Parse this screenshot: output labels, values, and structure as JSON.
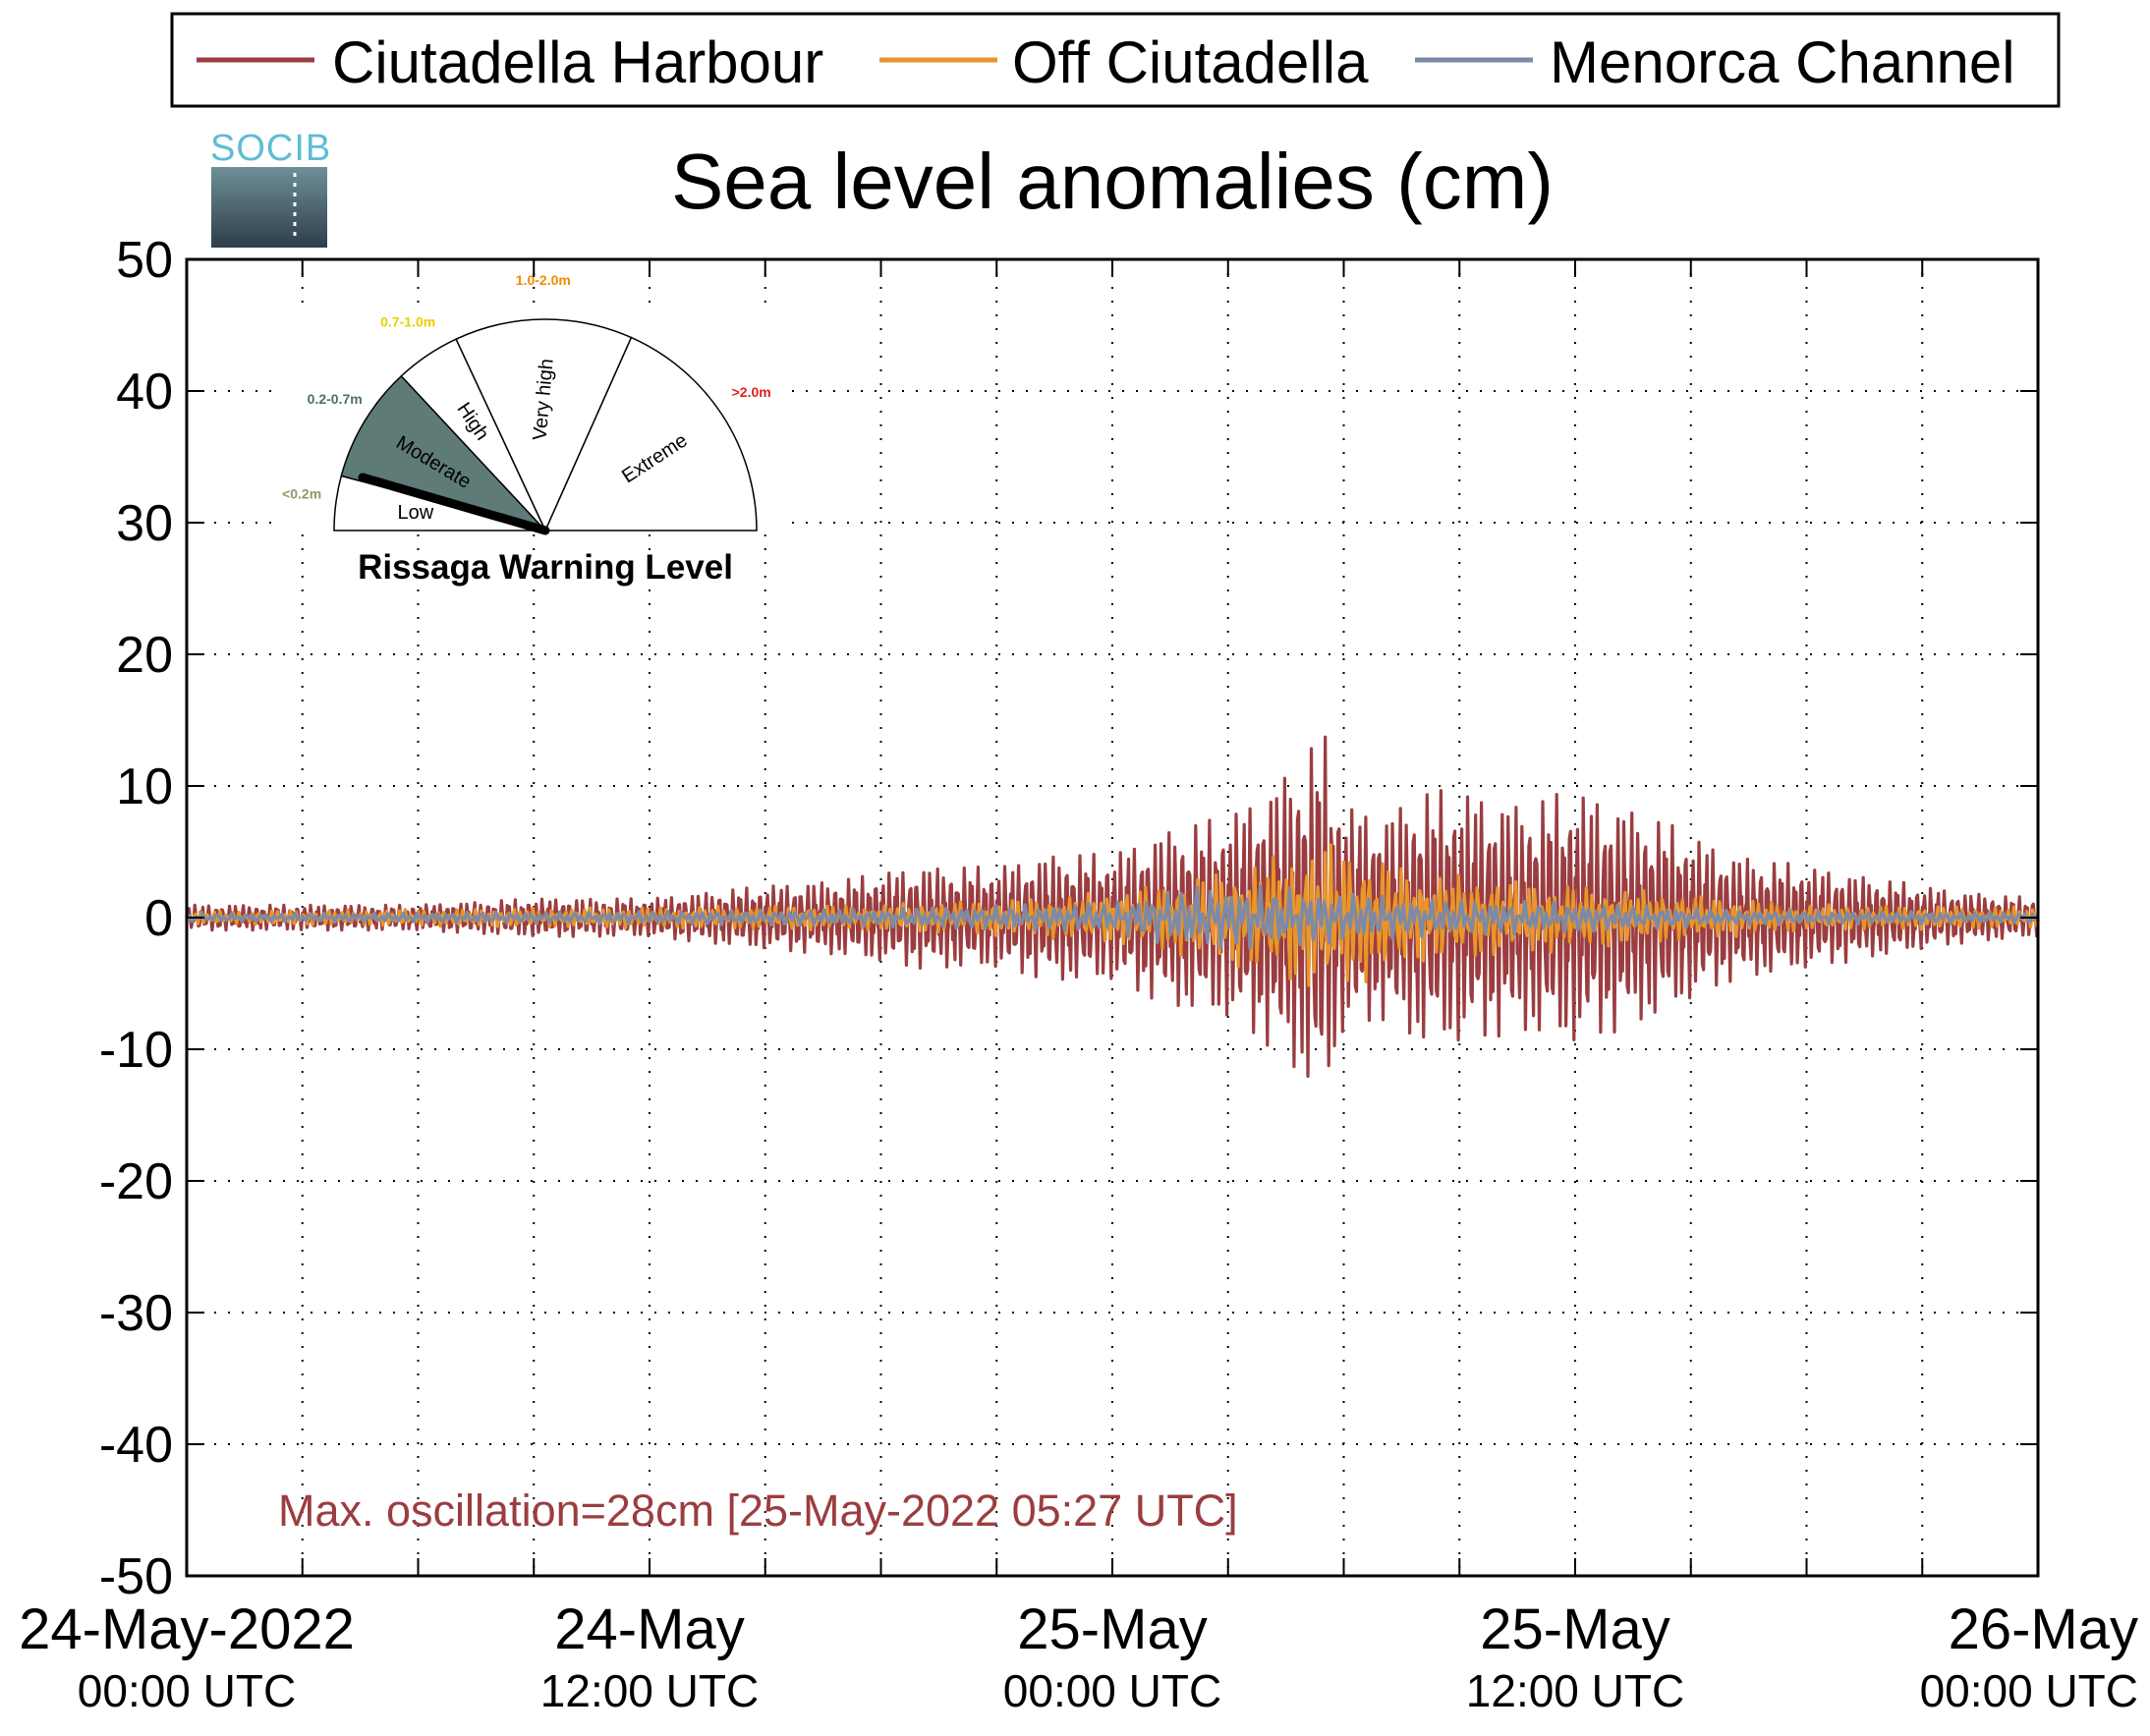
{
  "chart_data": {
    "type": "line",
    "title": "Sea level anomalies (cm)",
    "xlabel": "",
    "ylabel": "",
    "ylim": [
      -50,
      50
    ],
    "yticks": [
      50,
      40,
      30,
      20,
      10,
      0,
      -10,
      -20,
      -30,
      -40,
      -50
    ],
    "xlim": [
      "2022-05-24 00:00",
      "2022-05-26 00:00"
    ],
    "grid": true,
    "legend_position": "top",
    "x_tick_labels": [
      {
        "at": "2022-05-24 00:00",
        "main": "24-May-2022",
        "sub": "00:00 UTC"
      },
      {
        "at": "2022-05-24 12:00",
        "main": "24-May",
        "sub": "12:00 UTC"
      },
      {
        "at": "2022-05-25 00:00",
        "main": "25-May",
        "sub": "00:00 UTC"
      },
      {
        "at": "2022-05-25 12:00",
        "main": "25-May",
        "sub": "12:00 UTC"
      },
      {
        "at": "2022-05-26 00:00",
        "main": "26-May",
        "sub": "00:00 UTC"
      }
    ],
    "series": [
      {
        "name": "Ciutadella Harbour",
        "color": "#9b3d40",
        "x": [
          "2022-05-24 00:00",
          "2022-05-24 03:00",
          "2022-05-24 06:00",
          "2022-05-24 09:00",
          "2022-05-24 12:00",
          "2022-05-24 15:00",
          "2022-05-24 17:00",
          "2022-05-24 19:00",
          "2022-05-24 21:00",
          "2022-05-24 22:30",
          "2022-05-25 00:00",
          "2022-05-25 01:30",
          "2022-05-25 03:00",
          "2022-05-25 04:00",
          "2022-05-25 05:00",
          "2022-05-25 05:27",
          "2022-05-25 06:00",
          "2022-05-25 07:00",
          "2022-05-25 08:00",
          "2022-05-25 09:00",
          "2022-05-25 10:30",
          "2022-05-25 12:00",
          "2022-05-25 13:00",
          "2022-05-25 14:00",
          "2022-05-25 16:00",
          "2022-05-25 18:00",
          "2022-05-25 20:00",
          "2022-05-25 22:00",
          "2022-05-26 00:00"
        ],
        "envelope": [
          1,
          1,
          1,
          1.5,
          1.5,
          2.5,
          3,
          4,
          4,
          5,
          5,
          7,
          8,
          10,
          13,
          15,
          9,
          8,
          10,
          10,
          9,
          10,
          9,
          8,
          5,
          4,
          3,
          2,
          1.5
        ]
      },
      {
        "name": "Off Ciutadella",
        "color": "#e8952a",
        "x": [
          "2022-05-24 00:00",
          "2022-05-24 12:00",
          "2022-05-24 18:00",
          "2022-05-24 22:00",
          "2022-05-25 00:00",
          "2022-05-25 02:00",
          "2022-05-25 04:00",
          "2022-05-25 05:30",
          "2022-05-25 06:30",
          "2022-05-25 08:00",
          "2022-05-25 10:00",
          "2022-05-25 12:00",
          "2022-05-25 14:00",
          "2022-05-25 18:00",
          "2022-05-26 00:00"
        ],
        "envelope": [
          0.5,
          0.8,
          1,
          1.5,
          2,
          3,
          4.5,
          6,
          5,
          3.5,
          3,
          2.5,
          2,
          1,
          0.8
        ]
      },
      {
        "name": "Menorca Channel",
        "color": "#7d8aa7",
        "x": [
          "2022-05-24 00:00",
          "2022-05-24 12:00",
          "2022-05-24 18:00",
          "2022-05-25 00:00",
          "2022-05-25 02:00",
          "2022-05-25 04:00",
          "2022-05-25 06:00",
          "2022-05-25 08:00",
          "2022-05-25 12:00",
          "2022-05-25 16:00",
          "2022-05-26 00:00"
        ],
        "envelope": [
          0.3,
          0.5,
          0.7,
          1.2,
          2.5,
          2.5,
          2,
          1.5,
          1.2,
          0.6,
          0.4
        ]
      }
    ],
    "annotation": {
      "text": "Max. oscillation=28cm [25-May-2022 05:27 UTC]",
      "color": "#9b3d40"
    }
  },
  "inset": {
    "title": "Rissaga Warning Level",
    "current_level": "Moderate",
    "sectors": [
      {
        "label": "Low",
        "range": "<0.2m",
        "range_color": "#8a9a6a"
      },
      {
        "label": "Moderate",
        "range": "0.2-0.7m",
        "range_color": "#4f6d6d",
        "fill": "#5e7b78"
      },
      {
        "label": "High",
        "range": "0.7-1.0m",
        "range_color": "#e8d000"
      },
      {
        "label": "Very high",
        "range": "1.0-2.0m",
        "range_color": "#f08c00"
      },
      {
        "label": "Extreme",
        "range": ">2.0m",
        "range_color": "#e02020"
      }
    ]
  },
  "logo": {
    "text": "SOCIB",
    "icon": "socib-logo-icon"
  }
}
